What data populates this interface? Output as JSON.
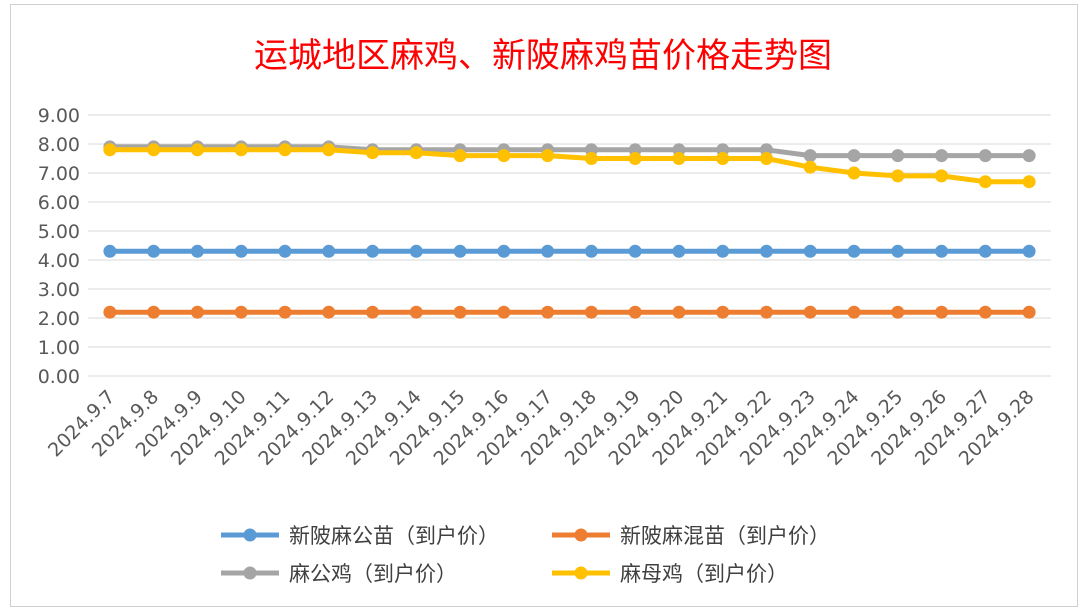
{
  "chart_data": {
    "type": "line",
    "title": "运城地区麻鸡、新陂麻鸡苗价格走势图",
    "title_color": "#ff0000",
    "xlabel": "",
    "ylabel": "",
    "ylim": [
      0,
      9
    ],
    "yticks": [
      "0.00",
      "1.00",
      "2.00",
      "3.00",
      "4.00",
      "5.00",
      "6.00",
      "7.00",
      "8.00",
      "9.00"
    ],
    "grid": true,
    "legend_position": "bottom",
    "categories": [
      "2024.9.7",
      "2024.9.8",
      "2024.9.9",
      "2024.9.10",
      "2024.9.11",
      "2024.9.12",
      "2024.9.13",
      "2024.9.14",
      "2024.9.15",
      "2024.9.16",
      "2024.9.17",
      "2024.9.18",
      "2024.9.19",
      "2024.9.20",
      "2024.9.21",
      "2024.9.22",
      "2024.9.23",
      "2024.9.24",
      "2024.9.25",
      "2024.9.26",
      "2024.9.27",
      "2024.9.28"
    ],
    "series": [
      {
        "name": "新陂麻公苗（到户价）",
        "color": "#5b9bd5",
        "values": [
          4.3,
          4.3,
          4.3,
          4.3,
          4.3,
          4.3,
          4.3,
          4.3,
          4.3,
          4.3,
          4.3,
          4.3,
          4.3,
          4.3,
          4.3,
          4.3,
          4.3,
          4.3,
          4.3,
          4.3,
          4.3,
          4.3
        ]
      },
      {
        "name": "新陂麻混苗（到户价）",
        "color": "#ed7d31",
        "values": [
          2.2,
          2.2,
          2.2,
          2.2,
          2.2,
          2.2,
          2.2,
          2.2,
          2.2,
          2.2,
          2.2,
          2.2,
          2.2,
          2.2,
          2.2,
          2.2,
          2.2,
          2.2,
          2.2,
          2.2,
          2.2,
          2.2
        ]
      },
      {
        "name": "麻公鸡（到户价）",
        "color": "#a5a5a5",
        "values": [
          7.9,
          7.9,
          7.9,
          7.9,
          7.9,
          7.9,
          7.8,
          7.8,
          7.8,
          7.8,
          7.8,
          7.8,
          7.8,
          7.8,
          7.8,
          7.8,
          7.6,
          7.6,
          7.6,
          7.6,
          7.6,
          7.6
        ]
      },
      {
        "name": "麻母鸡（到户价）",
        "color": "#ffc000",
        "values": [
          7.8,
          7.8,
          7.8,
          7.8,
          7.8,
          7.8,
          7.7,
          7.7,
          7.6,
          7.6,
          7.6,
          7.5,
          7.5,
          7.5,
          7.5,
          7.5,
          7.2,
          7.0,
          6.9,
          6.9,
          6.7,
          6.7
        ]
      }
    ]
  }
}
